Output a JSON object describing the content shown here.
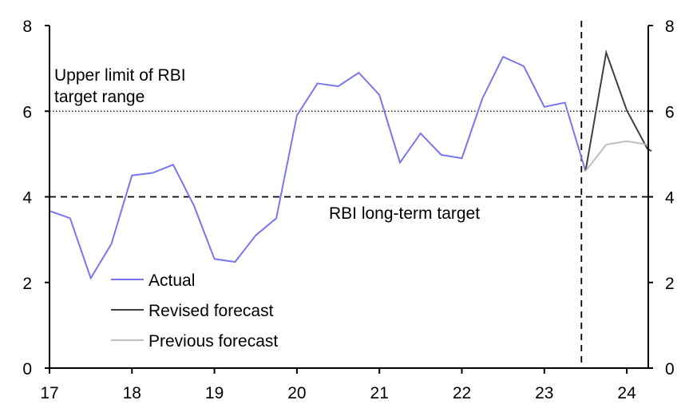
{
  "chart_data": {
    "type": "line",
    "title": "",
    "xlabel": "",
    "ylabel": "",
    "xlim": [
      17,
      24.25
    ],
    "ylim": [
      0,
      8
    ],
    "x_ticks": [
      "17",
      "18",
      "19",
      "20",
      "21",
      "22",
      "23",
      "24"
    ],
    "y_ticks_left": [
      "0",
      "2",
      "4",
      "6",
      "8"
    ],
    "y_ticks_right": [
      "0",
      "2",
      "4",
      "6",
      "8"
    ],
    "grid": false,
    "legend_placement": "bottom-left",
    "forecast_divider_x": 23.45,
    "reference_lines": [
      {
        "name": "upper-limit",
        "y": 6,
        "style": "dotted",
        "label": [
          "Upper limit of RBI",
          "target range"
        ]
      },
      {
        "name": "long-term-target",
        "y": 4,
        "style": "dashed",
        "label": [
          "RBI long-term target"
        ]
      }
    ],
    "series": [
      {
        "name": "Actual",
        "color": "#7777ee",
        "x": [
          17,
          17.25,
          17.5,
          17.75,
          18,
          18.25,
          18.5,
          18.75,
          19,
          19.25,
          19.5,
          19.75,
          20,
          20.25,
          20.5,
          20.75,
          21,
          21.25,
          21.5,
          21.75,
          22,
          22.25,
          22.5,
          22.75,
          23,
          23.25,
          23.5
        ],
        "values": [
          3.67,
          3.5,
          2.1,
          2.9,
          4.5,
          4.56,
          4.75,
          3.8,
          2.55,
          2.48,
          3.1,
          3.5,
          5.9,
          6.65,
          6.58,
          6.9,
          6.38,
          4.8,
          5.48,
          4.98,
          4.9,
          6.3,
          7.27,
          7.05,
          6.1,
          6.2,
          4.6
        ]
      },
      {
        "name": "Revised forecast",
        "color": "#404040",
        "x": [
          23.5,
          23.75,
          24,
          24.25,
          24.3
        ],
        "values": [
          4.6,
          7.37,
          6.02,
          5.12,
          5.07
        ]
      },
      {
        "name": "Previous forecast",
        "color": "#c0c0c0",
        "x": [
          23.5,
          23.75,
          24,
          24.25
        ],
        "values": [
          4.6,
          5.22,
          5.3,
          5.22
        ]
      }
    ]
  }
}
